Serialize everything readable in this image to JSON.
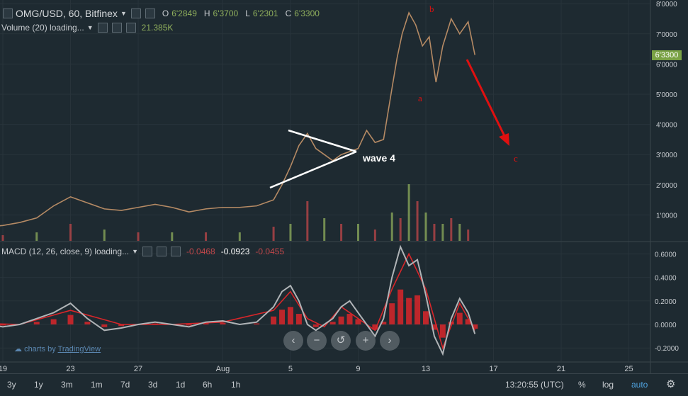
{
  "header": {
    "symbol": "OMG/USD, 60, Bitfinex",
    "ohlc": [
      {
        "label": "O",
        "value": "6'2849"
      },
      {
        "label": "H",
        "value": "6'3700"
      },
      {
        "label": "L",
        "value": "6'2301"
      },
      {
        "label": "C",
        "value": "6'3300"
      }
    ]
  },
  "volume_legend": {
    "label": "Volume (20) loading...",
    "value": "21.385K"
  },
  "macd_legend": {
    "label": "MACD (12, 26, close, 9) loading...",
    "v1": "-0.0468",
    "v2": "-0.0923",
    "v3": "-0.0455"
  },
  "last_price": "6'3300",
  "annotations": {
    "wave4": "wave 4",
    "a": "a",
    "b": "b",
    "c": "c"
  },
  "branding": {
    "prefix": "charts by",
    "name": "TradingView"
  },
  "nav_buttons": [
    {
      "name": "scroll-left",
      "glyph": "‹"
    },
    {
      "name": "zoom-out",
      "glyph": "−"
    },
    {
      "name": "reset",
      "glyph": "↺"
    },
    {
      "name": "zoom-in",
      "glyph": "+"
    },
    {
      "name": "scroll-right",
      "glyph": "›"
    }
  ],
  "timeframes": [
    "3y",
    "1y",
    "3m",
    "1m",
    "7d",
    "3d",
    "1d",
    "6h",
    "1h"
  ],
  "bottom_right": {
    "clock": "13:20:55 (UTC)",
    "percent": "%",
    "log": "log",
    "auto": "auto"
  },
  "colors": {
    "background": "#1e2a31",
    "up": "#8fae5c",
    "down": "#c0474a",
    "macd": "#b0b4b7",
    "signal": "#d9262a",
    "hist": "#d9262a",
    "annotation": "#e01010",
    "trendline": "#ffffff",
    "accent": "#4fa3e0"
  },
  "chart_data": [
    {
      "type": "line",
      "title": "OMG/USD, 60, Bitfinex",
      "x_ticks": [
        "19",
        "23",
        "27",
        "Aug",
        "5",
        "9",
        "13",
        "17",
        "21",
        "25"
      ],
      "y_ticks": [
        "1'0000",
        "2'0000",
        "3'0000",
        "4'0000",
        "5'0000",
        "6'0000",
        "7'0000",
        "8'0000"
      ],
      "ylim": [
        0,
        8
      ],
      "series": [
        {
          "x": [
            17,
            18,
            19,
            20,
            21,
            22,
            23,
            24,
            25,
            26,
            27,
            28,
            29,
            30,
            31,
            32,
            33,
            34,
            35,
            35.5,
            36,
            36.5,
            37,
            37.5,
            38,
            38.5,
            39,
            39.5,
            40,
            40.5,
            41,
            41.5,
            42,
            42.3,
            42.6,
            43,
            43.4,
            43.8,
            44.2,
            44.6,
            45,
            45.5,
            46,
            46.5,
            46.9
          ],
          "y": [
            0.7,
            0.6,
            0.65,
            0.75,
            0.9,
            1.3,
            1.6,
            1.4,
            1.2,
            1.15,
            1.25,
            1.35,
            1.25,
            1.1,
            1.2,
            1.25,
            1.25,
            1.3,
            1.5,
            2.0,
            2.6,
            3.3,
            3.7,
            3.2,
            3.0,
            2.8,
            3.0,
            3.1,
            3.2,
            3.8,
            3.4,
            3.5,
            5.2,
            6.2,
            7.0,
            7.7,
            7.3,
            6.6,
            6.9,
            5.4,
            6.6,
            7.5,
            7.0,
            7.4,
            6.3
          ]
        }
      ]
    },
    {
      "type": "bar",
      "title": "Volume (20)",
      "x": [
        17,
        19,
        21,
        23,
        25,
        27,
        29,
        31,
        33,
        35,
        36,
        37,
        38,
        39,
        40,
        41,
        42,
        42.5,
        43,
        43.5,
        44,
        44.5,
        45,
        45.5,
        46,
        46.5
      ],
      "values": [
        1,
        1,
        1.5,
        3,
        2,
        1.5,
        1.5,
        1.5,
        1.5,
        2.5,
        3,
        7,
        4,
        3,
        3,
        2,
        5,
        4,
        10,
        7,
        5,
        3,
        3,
        4,
        3,
        2
      ]
    },
    {
      "type": "line",
      "title": "MACD (12, 26, close, 9)",
      "y_ticks": [
        "-0.2000",
        "0.0000",
        "0.2000",
        "0.4000",
        "0.6000"
      ],
      "ylim": [
        -0.25,
        0.68
      ],
      "series": [
        {
          "x": [
            17,
            18,
            19,
            20,
            21,
            22,
            23,
            24,
            25,
            26,
            27,
            28,
            29,
            30,
            31,
            32,
            33,
            34,
            35,
            35.5,
            36,
            36.5,
            37,
            37.5,
            38,
            38.5,
            39,
            39.5,
            40,
            40.5,
            41,
            41.5,
            42,
            42.5,
            43,
            43.5,
            44,
            44.5,
            45,
            45.5,
            46,
            46.5,
            46.9
          ],
          "y": [
            0.02,
            0.0,
            -0.02,
            0.0,
            0.05,
            0.1,
            0.18,
            0.05,
            -0.05,
            -0.03,
            0.0,
            0.02,
            0.0,
            -0.02,
            0.02,
            0.03,
            0.0,
            0.02,
            0.15,
            0.28,
            0.33,
            0.2,
            0.0,
            -0.05,
            0.0,
            0.05,
            0.15,
            0.2,
            0.1,
            0.0,
            -0.1,
            0.05,
            0.4,
            0.66,
            0.5,
            0.55,
            0.25,
            -0.1,
            -0.25,
            0.05,
            0.22,
            0.1,
            -0.08
          ]
        },
        {
          "x": [
            17,
            20,
            23,
            26,
            29,
            32,
            35,
            36,
            37,
            38,
            39,
            40,
            41,
            42,
            43,
            44,
            45,
            46,
            46.9
          ],
          "y": [
            0.01,
            0.0,
            0.12,
            0.0,
            0.0,
            0.02,
            0.12,
            0.28,
            0.05,
            -0.02,
            0.15,
            0.05,
            -0.05,
            0.3,
            0.6,
            0.3,
            -0.2,
            0.18,
            -0.05
          ]
        }
      ]
    }
  ]
}
